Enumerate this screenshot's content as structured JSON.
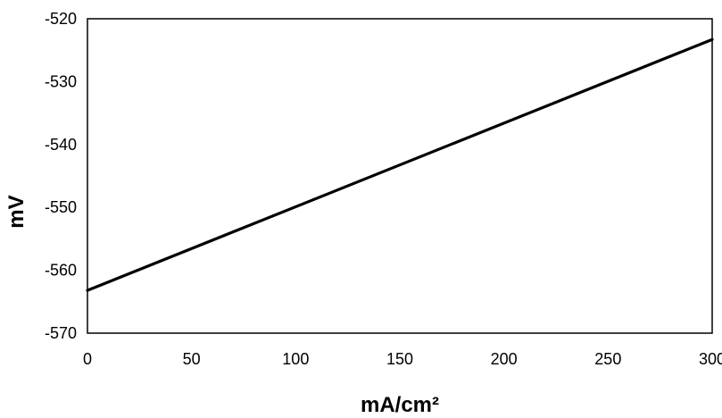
{
  "chart_data": {
    "type": "line",
    "title": "",
    "xlabel": "mA/cm²",
    "ylabel": "mV",
    "xlim": [
      0,
      300
    ],
    "ylim": [
      -570,
      -520
    ],
    "x_ticks": [
      0,
      50,
      100,
      150,
      200,
      250,
      300
    ],
    "y_ticks": [
      -520,
      -530,
      -540,
      -550,
      -560,
      -570
    ],
    "grid": false,
    "legend": "none",
    "series": [
      {
        "color": "#000000",
        "x": [
          0,
          300
        ],
        "y": [
          -563.2,
          -523.3
        ]
      }
    ]
  }
}
